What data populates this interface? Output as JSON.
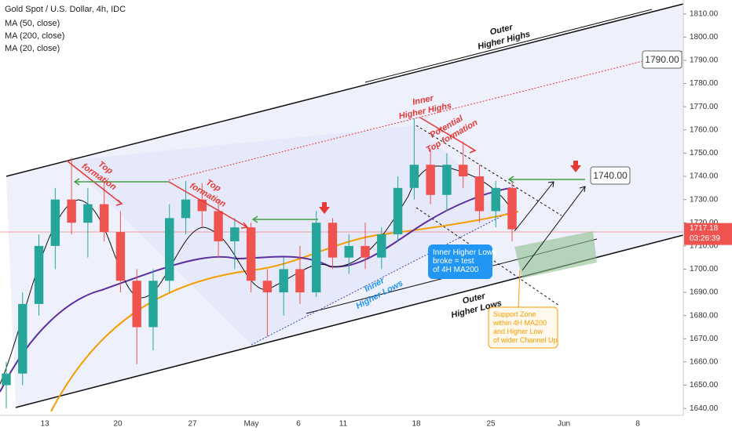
{
  "chart_data": {
    "type": "candlestick",
    "title": "Gold Spot / U.S. Dollar, 4h, IDC",
    "legend": [
      "MA (50, close)",
      "MA (200, close)",
      "MA (20, close)"
    ],
    "ylim": [
      1637,
      1816
    ],
    "yticks": [
      {
        "value": 1640,
        "label": "1640.00"
      },
      {
        "value": 1650,
        "label": "1650.00"
      },
      {
        "value": 1660,
        "label": "1660.00"
      },
      {
        "value": 1670,
        "label": "1670.00"
      },
      {
        "value": 1680,
        "label": "1680.00"
      },
      {
        "value": 1690,
        "label": "1690.00"
      },
      {
        "value": 1700,
        "label": "1700.00"
      },
      {
        "value": 1710,
        "label": "1710.00"
      },
      {
        "value": 1720,
        "label": "1720.00"
      },
      {
        "value": 1730,
        "label": "1730.00"
      },
      {
        "value": 1740,
        "label": "1740.00"
      },
      {
        "value": 1750,
        "label": "1750.00"
      },
      {
        "value": 1760,
        "label": "1760.00"
      },
      {
        "value": 1770,
        "label": "1770.00"
      },
      {
        "value": 1780,
        "label": "1780.00"
      },
      {
        "value": 1790,
        "label": "1790.00"
      },
      {
        "value": 1800,
        "label": "1800.00"
      },
      {
        "value": 1810,
        "label": "1810.00"
      }
    ],
    "x_labels": [
      "13",
      "20",
      "27",
      "May",
      "6",
      "11",
      "18",
      "25",
      "Jun",
      "8"
    ],
    "last_price": {
      "value": 1717.18,
      "label": "1717.18"
    },
    "countdown": "03:26:39",
    "candles": [
      [
        1650,
        1660,
        1640,
        1655
      ],
      [
        1655,
        1690,
        1650,
        1685
      ],
      [
        1685,
        1715,
        1680,
        1710
      ],
      [
        1710,
        1735,
        1700,
        1730
      ],
      [
        1730,
        1748,
        1715,
        1720
      ],
      [
        1720,
        1735,
        1705,
        1728
      ],
      [
        1728,
        1738,
        1712,
        1716
      ],
      [
        1716,
        1725,
        1690,
        1695
      ],
      [
        1695,
        1700,
        1659,
        1675
      ],
      [
        1675,
        1700,
        1665,
        1695
      ],
      [
        1695,
        1728,
        1690,
        1722
      ],
      [
        1722,
        1738,
        1715,
        1730
      ],
      [
        1730,
        1737,
        1718,
        1725
      ],
      [
        1725,
        1730,
        1705,
        1712
      ],
      [
        1712,
        1722,
        1700,
        1718
      ],
      [
        1718,
        1720,
        1690,
        1695
      ],
      [
        1695,
        1700,
        1671,
        1690
      ],
      [
        1690,
        1705,
        1680,
        1700
      ],
      [
        1700,
        1710,
        1685,
        1690
      ],
      [
        1690,
        1725,
        1688,
        1720
      ],
      [
        1720,
        1722,
        1700,
        1705
      ],
      [
        1705,
        1715,
        1698,
        1710
      ],
      [
        1710,
        1720,
        1700,
        1705
      ],
      [
        1705,
        1718,
        1700,
        1715
      ],
      [
        1715,
        1740,
        1712,
        1735
      ],
      [
        1735,
        1765,
        1730,
        1745
      ],
      [
        1745,
        1752,
        1728,
        1732
      ],
      [
        1732,
        1750,
        1725,
        1745
      ],
      [
        1745,
        1755,
        1735,
        1740
      ],
      [
        1740,
        1745,
        1720,
        1725
      ],
      [
        1725,
        1738,
        1718,
        1735
      ],
      [
        1735,
        1738,
        1712,
        1717.18
      ]
    ],
    "up_color": "#26a69a",
    "down_color": "#ef5350",
    "annotations": {
      "outer_highs": [
        "Outer",
        "Higher Highs"
      ],
      "outer_lows": [
        "Outer",
        "Higher Lows"
      ],
      "inner_highs": [
        "Inner",
        "Higher Highs"
      ],
      "inner_lows": [
        "Inner",
        "Higher Lows"
      ],
      "top1": [
        "Top",
        "formation"
      ],
      "top2": [
        "Top",
        "formation"
      ],
      "potential": [
        "Potential",
        "Top formation"
      ],
      "target1": {
        "value": 1790,
        "label": "1790.00"
      },
      "target2": {
        "value": 1740,
        "label": "1740.00"
      },
      "broke": [
        "Inner Higher Lows",
        "broke = test",
        "of 4H MA200"
      ],
      "support": [
        "Support Zone",
        "within 4H MA200",
        "and Higher Low",
        "of wider Channel Up"
      ]
    }
  }
}
